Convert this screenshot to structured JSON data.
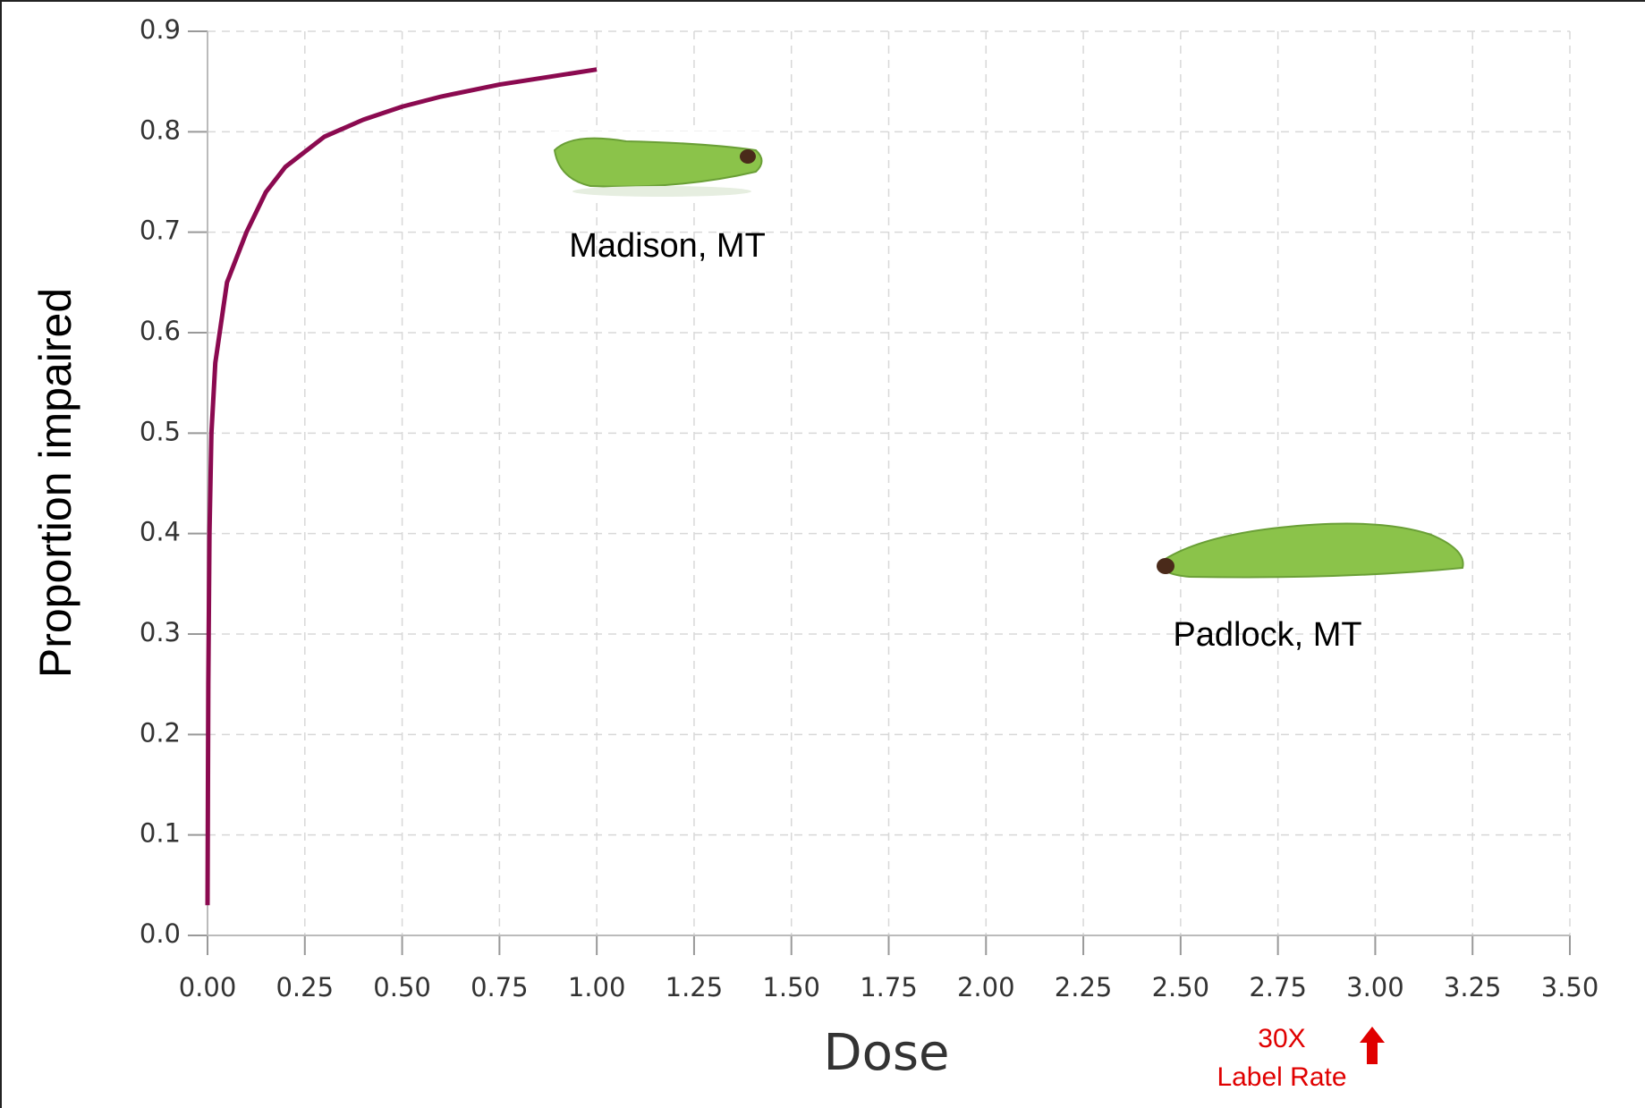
{
  "chart_data": {
    "type": "line",
    "x_label": "Dose",
    "y_label": "Proportion impaired",
    "annotations": [
      "Madison, MT",
      "Padlock, MT",
      "30X",
      "Label Rate"
    ],
    "x": [
      0,
      0.002,
      0.005,
      0.01,
      0.02,
      0.05,
      0.1,
      0.15,
      0.2,
      0.3,
      0.4,
      0.5,
      0.6,
      0.75,
      0.9,
      1.0
    ],
    "series": [
      {
        "color": "#8b0a50",
        "values": [
          0.03,
          0.25,
          0.4,
          0.5,
          0.57,
          0.65,
          0.7,
          0.74,
          0.765,
          0.795,
          0.812,
          0.825,
          0.835,
          0.847,
          0.856,
          0.862
        ]
      }
    ],
    "xlim": [
      0,
      3.5
    ],
    "xticks": [
      {
        "value": 0,
        "label": "0.00"
      },
      0.25,
      {
        "value": 0.5,
        "label": "0.50"
      },
      0.75,
      {
        "value": 1,
        "label": "1.00"
      },
      1.25,
      {
        "value": 1.5,
        "label": "1.50"
      },
      1.75,
      {
        "value": 2,
        "label": "2.00"
      },
      2.25,
      {
        "value": 2.5,
        "label": "2.50"
      },
      2.75,
      {
        "value": 3,
        "label": "3.00"
      },
      3.25,
      {
        "value": 3.5,
        "label": "3.50"
      }
    ],
    "ylim": [
      0,
      0.9
    ],
    "yticks": [
      {
        "value": 0,
        "label": "0.0"
      },
      0.1,
      0.2,
      0.3,
      0.4,
      0.5,
      0.6,
      0.7,
      0.8,
      0.9
    ],
    "grid": true
  }
}
